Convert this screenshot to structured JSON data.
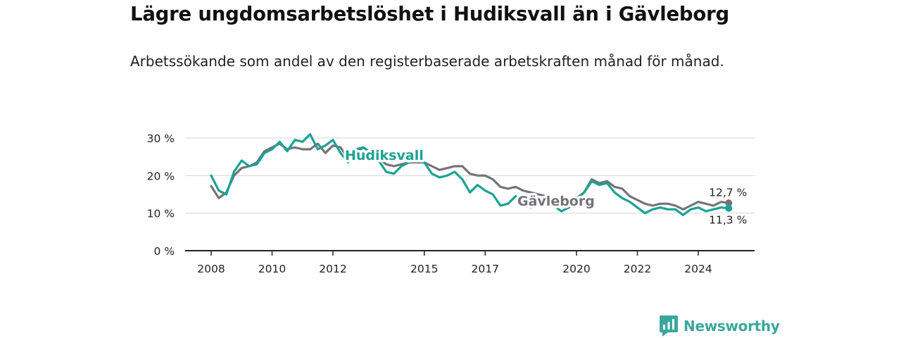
{
  "title": "Lägre ungdomsarbetslöshet i Hudiksvall än i Gävleborg",
  "subtitle": "Arbetssökande som andel av den registerbaserade arbetskraften månad för månad.",
  "brand": {
    "name": "Newsworthy",
    "icon": "newsworthy-logo-icon",
    "color": "#3aa89c"
  },
  "chart_data": {
    "type": "line",
    "ylim": [
      0,
      30
    ],
    "y_ticks": [
      0,
      10,
      20,
      30
    ],
    "y_tick_labels": [
      "0 %",
      "10 %",
      "20 %",
      "30 %"
    ],
    "x_ticks": [
      2008,
      2010,
      2012,
      2015,
      2017,
      2020,
      2022,
      2024
    ],
    "x_tick_labels": [
      "2008",
      "2010",
      "2012",
      "2015",
      "2017",
      "2020",
      "2022",
      "2024"
    ],
    "grid": true,
    "colors": {
      "Hudiksvall": "#1aa393",
      "Gävleborg": "#757378"
    },
    "end_labels": {
      "Hudiksvall": "11,3 %",
      "Gävleborg": "12,7 %"
    },
    "series": [
      {
        "name": "Gävleborg",
        "points": [
          [
            2008.0,
            17.2
          ],
          [
            2008.25,
            14.0
          ],
          [
            2008.5,
            15.5
          ],
          [
            2008.75,
            20.0
          ],
          [
            2009.0,
            22.0
          ],
          [
            2009.25,
            22.5
          ],
          [
            2009.5,
            23.5
          ],
          [
            2009.75,
            26.5
          ],
          [
            2010.0,
            27.5
          ],
          [
            2010.25,
            28.5
          ],
          [
            2010.5,
            27.0
          ],
          [
            2010.75,
            27.5
          ],
          [
            2011.0,
            27.0
          ],
          [
            2011.25,
            27.0
          ],
          [
            2011.5,
            28.5
          ],
          [
            2011.75,
            26.0
          ],
          [
            2012.0,
            28.0
          ],
          [
            2012.25,
            27.5
          ],
          [
            2012.5,
            24.5
          ],
          [
            2012.75,
            26.0
          ],
          [
            2013.0,
            27.5
          ],
          [
            2013.25,
            26.0
          ],
          [
            2013.5,
            24.5
          ],
          [
            2013.75,
            23.0
          ],
          [
            2014.0,
            22.5
          ],
          [
            2014.25,
            23.0
          ],
          [
            2014.5,
            23.5
          ],
          [
            2014.75,
            23.5
          ],
          [
            2015.0,
            23.5
          ],
          [
            2015.25,
            22.5
          ],
          [
            2015.5,
            21.5
          ],
          [
            2015.75,
            22.0
          ],
          [
            2016.0,
            22.5
          ],
          [
            2016.25,
            22.5
          ],
          [
            2016.5,
            20.5
          ],
          [
            2016.75,
            20.0
          ],
          [
            2017.0,
            20.0
          ],
          [
            2017.25,
            19.0
          ],
          [
            2017.5,
            17.0
          ],
          [
            2017.75,
            16.5
          ],
          [
            2018.0,
            17.0
          ],
          [
            2018.25,
            16.0
          ],
          [
            2018.5,
            15.5
          ],
          [
            2018.75,
            15.0
          ],
          [
            2019.0,
            14.5
          ],
          [
            2019.25,
            14.0
          ],
          [
            2019.5,
            14.0
          ],
          [
            2019.75,
            14.0
          ],
          [
            2020.0,
            14.0
          ],
          [
            2020.25,
            15.5
          ],
          [
            2020.5,
            19.0
          ],
          [
            2020.75,
            18.0
          ],
          [
            2021.0,
            18.5
          ],
          [
            2021.25,
            17.0
          ],
          [
            2021.5,
            16.5
          ],
          [
            2021.75,
            14.5
          ],
          [
            2022.0,
            13.5
          ],
          [
            2022.25,
            12.5
          ],
          [
            2022.5,
            12.0
          ],
          [
            2022.75,
            12.5
          ],
          [
            2023.0,
            12.5
          ],
          [
            2023.25,
            12.0
          ],
          [
            2023.5,
            11.0
          ],
          [
            2023.75,
            12.0
          ],
          [
            2024.0,
            13.0
          ],
          [
            2024.25,
            12.5
          ],
          [
            2024.5,
            12.0
          ],
          [
            2024.75,
            13.0
          ],
          [
            2025.0,
            12.7
          ]
        ]
      },
      {
        "name": "Hudiksvall",
        "points": [
          [
            2008.0,
            20.0
          ],
          [
            2008.25,
            16.0
          ],
          [
            2008.5,
            15.0
          ],
          [
            2008.75,
            21.0
          ],
          [
            2009.0,
            24.0
          ],
          [
            2009.25,
            22.5
          ],
          [
            2009.5,
            23.0
          ],
          [
            2009.75,
            26.0
          ],
          [
            2010.0,
            27.0
          ],
          [
            2010.25,
            29.0
          ],
          [
            2010.5,
            26.5
          ],
          [
            2010.75,
            29.5
          ],
          [
            2011.0,
            29.0
          ],
          [
            2011.25,
            31.0
          ],
          [
            2011.5,
            27.0
          ],
          [
            2011.75,
            28.0
          ],
          [
            2012.0,
            29.5
          ],
          [
            2012.25,
            26.0
          ],
          [
            2012.5,
            23.5
          ],
          [
            2012.75,
            27.0
          ],
          [
            2013.0,
            27.5
          ],
          [
            2013.25,
            26.0
          ],
          [
            2013.5,
            24.0
          ],
          [
            2013.75,
            21.0
          ],
          [
            2014.0,
            20.5
          ],
          [
            2014.25,
            22.5
          ],
          [
            2014.5,
            23.5
          ],
          [
            2014.75,
            24.0
          ],
          [
            2015.0,
            23.5
          ],
          [
            2015.25,
            20.5
          ],
          [
            2015.5,
            19.5
          ],
          [
            2015.75,
            20.0
          ],
          [
            2016.0,
            21.0
          ],
          [
            2016.25,
            19.0
          ],
          [
            2016.5,
            15.5
          ],
          [
            2016.75,
            17.5
          ],
          [
            2017.0,
            16.0
          ],
          [
            2017.25,
            15.0
          ],
          [
            2017.5,
            12.0
          ],
          [
            2017.75,
            12.5
          ],
          [
            2018.0,
            14.5
          ],
          [
            2018.25,
            13.0
          ],
          [
            2018.5,
            11.5
          ],
          [
            2018.75,
            12.0
          ],
          [
            2019.0,
            13.0
          ],
          [
            2019.25,
            12.0
          ],
          [
            2019.5,
            10.5
          ],
          [
            2019.75,
            11.5
          ],
          [
            2020.0,
            13.5
          ],
          [
            2020.25,
            15.5
          ],
          [
            2020.5,
            18.5
          ],
          [
            2020.75,
            17.5
          ],
          [
            2021.0,
            18.0
          ],
          [
            2021.25,
            15.5
          ],
          [
            2021.5,
            14.0
          ],
          [
            2021.75,
            13.0
          ],
          [
            2022.0,
            11.5
          ],
          [
            2022.25,
            10.0
          ],
          [
            2022.5,
            11.0
          ],
          [
            2022.75,
            11.5
          ],
          [
            2023.0,
            11.0
          ],
          [
            2023.25,
            11.0
          ],
          [
            2023.5,
            9.5
          ],
          [
            2023.75,
            11.0
          ],
          [
            2024.0,
            11.5
          ],
          [
            2024.25,
            10.5
          ],
          [
            2024.5,
            11.0
          ],
          [
            2024.75,
            11.5
          ],
          [
            2025.0,
            11.3
          ]
        ]
      }
    ]
  }
}
